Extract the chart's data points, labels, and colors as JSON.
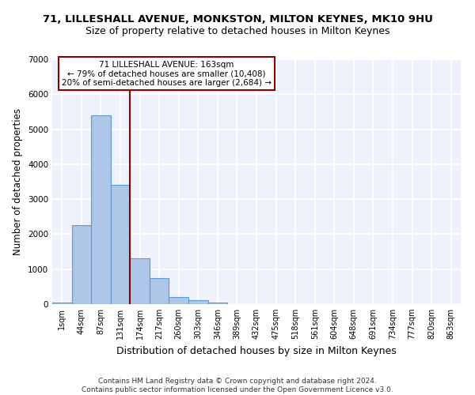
{
  "title1": "71, LILLESHALL AVENUE, MONKSTON, MILTON KEYNES, MK10 9HU",
  "title2": "Size of property relative to detached houses in Milton Keynes",
  "xlabel": "Distribution of detached houses by size in Milton Keynes",
  "ylabel": "Number of detached properties",
  "categories": [
    "1sqm",
    "44sqm",
    "87sqm",
    "131sqm",
    "174sqm",
    "217sqm",
    "260sqm",
    "303sqm",
    "346sqm",
    "389sqm",
    "432sqm",
    "475sqm",
    "518sqm",
    "561sqm",
    "604sqm",
    "648sqm",
    "691sqm",
    "734sqm",
    "777sqm",
    "820sqm",
    "863sqm"
  ],
  "values": [
    50,
    2250,
    5400,
    3400,
    1300,
    750,
    200,
    110,
    55,
    10,
    0,
    0,
    0,
    0,
    0,
    0,
    0,
    0,
    0,
    0,
    0
  ],
  "bar_color": "#aec6e8",
  "bar_edge_color": "#5b9bd5",
  "vline_color": "#8b0000",
  "annotation_text": "71 LILLESHALL AVENUE: 163sqm\n← 79% of detached houses are smaller (10,408)\n20% of semi-detached houses are larger (2,684) →",
  "annotation_box_color": "white",
  "annotation_box_edgecolor": "#8b0000",
  "ylim": [
    0,
    7000
  ],
  "yticks": [
    0,
    1000,
    2000,
    3000,
    4000,
    5000,
    6000,
    7000
  ],
  "background_color": "#eef2fb",
  "grid_color": "white",
  "footer": "Contains HM Land Registry data © Crown copyright and database right 2024.\nContains public sector information licensed under the Open Government Licence v3.0.",
  "title1_fontsize": 9.5,
  "title2_fontsize": 9,
  "xlabel_fontsize": 9,
  "ylabel_fontsize": 8.5,
  "footer_fontsize": 6.5,
  "tick_fontsize": 7,
  "annotation_fontsize": 7.5
}
